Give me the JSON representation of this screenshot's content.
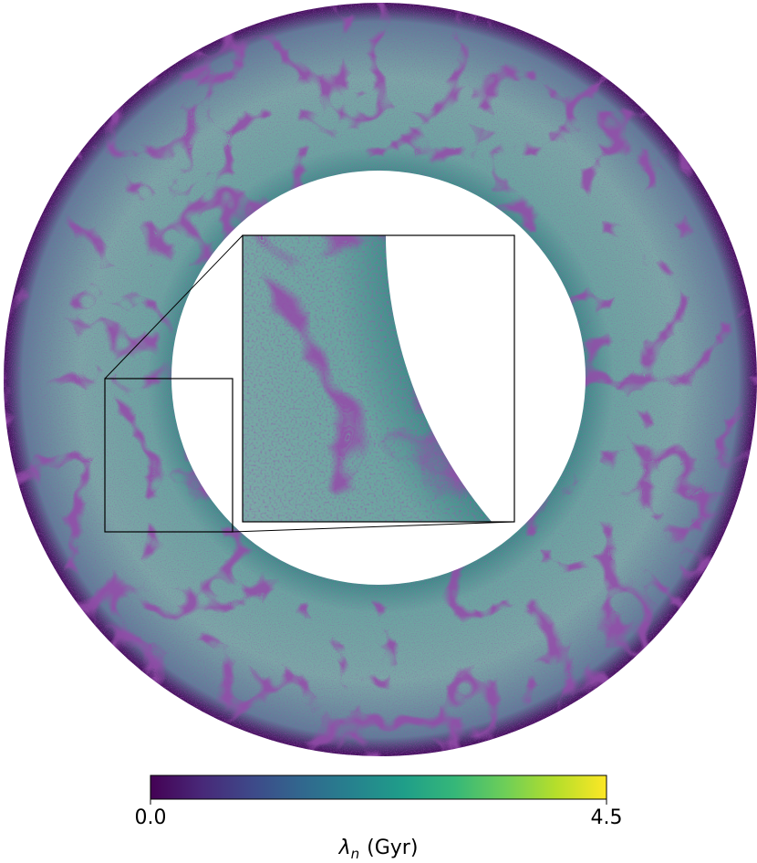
{
  "chart_data": {
    "type": "annulus-field",
    "colormap": "viridis",
    "colorbar": {
      "clim": [
        0,
        4.5
      ],
      "ticks": [
        {
          "value": 0,
          "label": "0.0"
        },
        4.5
      ],
      "label": {
        "symbol": "λ",
        "subscript": "n",
        "unit": "(Gyr)"
      }
    }
  }
}
